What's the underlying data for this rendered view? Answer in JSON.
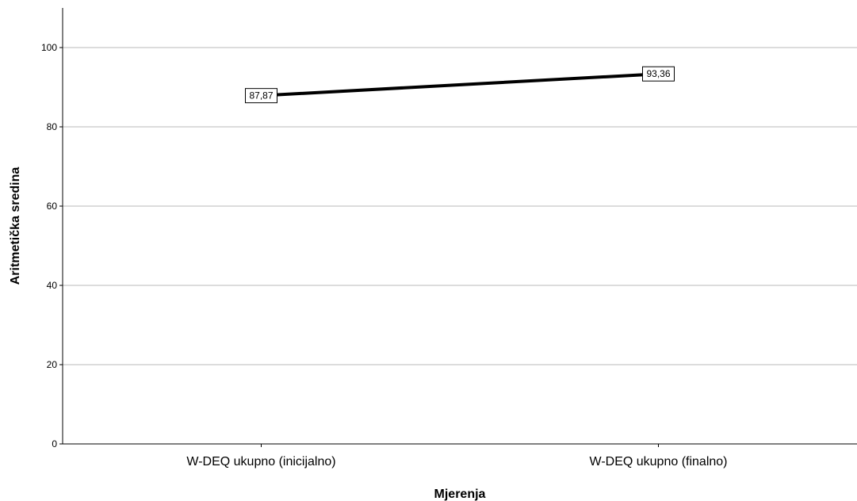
{
  "chart_data": {
    "type": "line",
    "title": "",
    "xlabel": "Mjerenja",
    "ylabel": "Aritmetička sredina",
    "categories": [
      "W-DEQ ukupno (inicijalno)",
      "W-DEQ ukupno (finalno)"
    ],
    "series": [
      {
        "values": [
          87.87,
          93.36
        ],
        "value_labels": [
          "87,87",
          "93,36"
        ],
        "color": "#000000"
      }
    ],
    "ylim": [
      0,
      110
    ],
    "yticks": [
      0,
      20,
      40,
      60,
      80,
      100
    ],
    "grid": true,
    "legend": "none"
  }
}
